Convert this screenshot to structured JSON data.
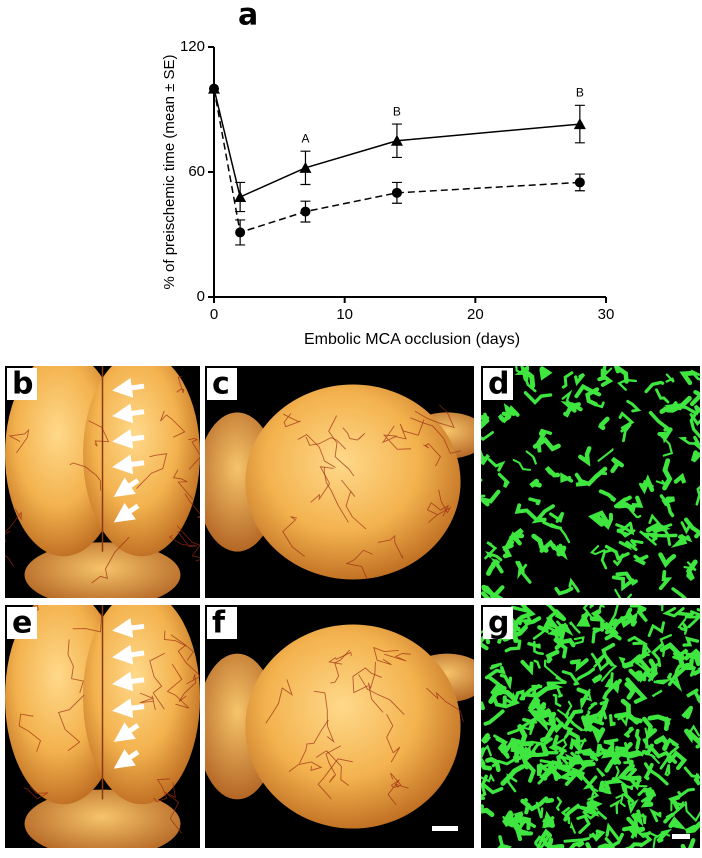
{
  "chart_data": {
    "type": "line",
    "panel_label": "a",
    "y_label": "% of preischemic time (mean ± SE)",
    "x_label": "Embolic MCA occlusion (days)",
    "x": [
      0,
      2,
      7,
      14,
      28
    ],
    "series": [
      {
        "color": "#000000",
        "marker": "triangle",
        "dashed": false,
        "values": [
          100,
          48,
          62,
          75,
          83
        ],
        "errors": [
          0,
          7,
          8,
          8,
          9
        ]
      },
      {
        "color": "#000000",
        "marker": "circle",
        "dashed": true,
        "values": [
          100,
          31,
          41,
          50,
          55
        ],
        "errors": [
          0,
          6,
          5,
          5,
          4
        ]
      }
    ],
    "annotations": [
      {
        "x": 7,
        "text": "A"
      },
      {
        "x": 14,
        "text": "B"
      },
      {
        "x": 28,
        "text": "B"
      }
    ],
    "xlim": [
      0,
      30
    ],
    "xticks": [
      0,
      10,
      20,
      30
    ],
    "ylim": [
      0,
      120
    ],
    "yticks": [
      0,
      60,
      120
    ],
    "grid": false
  },
  "panels": [
    {
      "label": "b"
    },
    {
      "label": "c"
    },
    {
      "label": "d"
    },
    {
      "label": "e"
    },
    {
      "label": "f"
    },
    {
      "label": "g"
    }
  ]
}
